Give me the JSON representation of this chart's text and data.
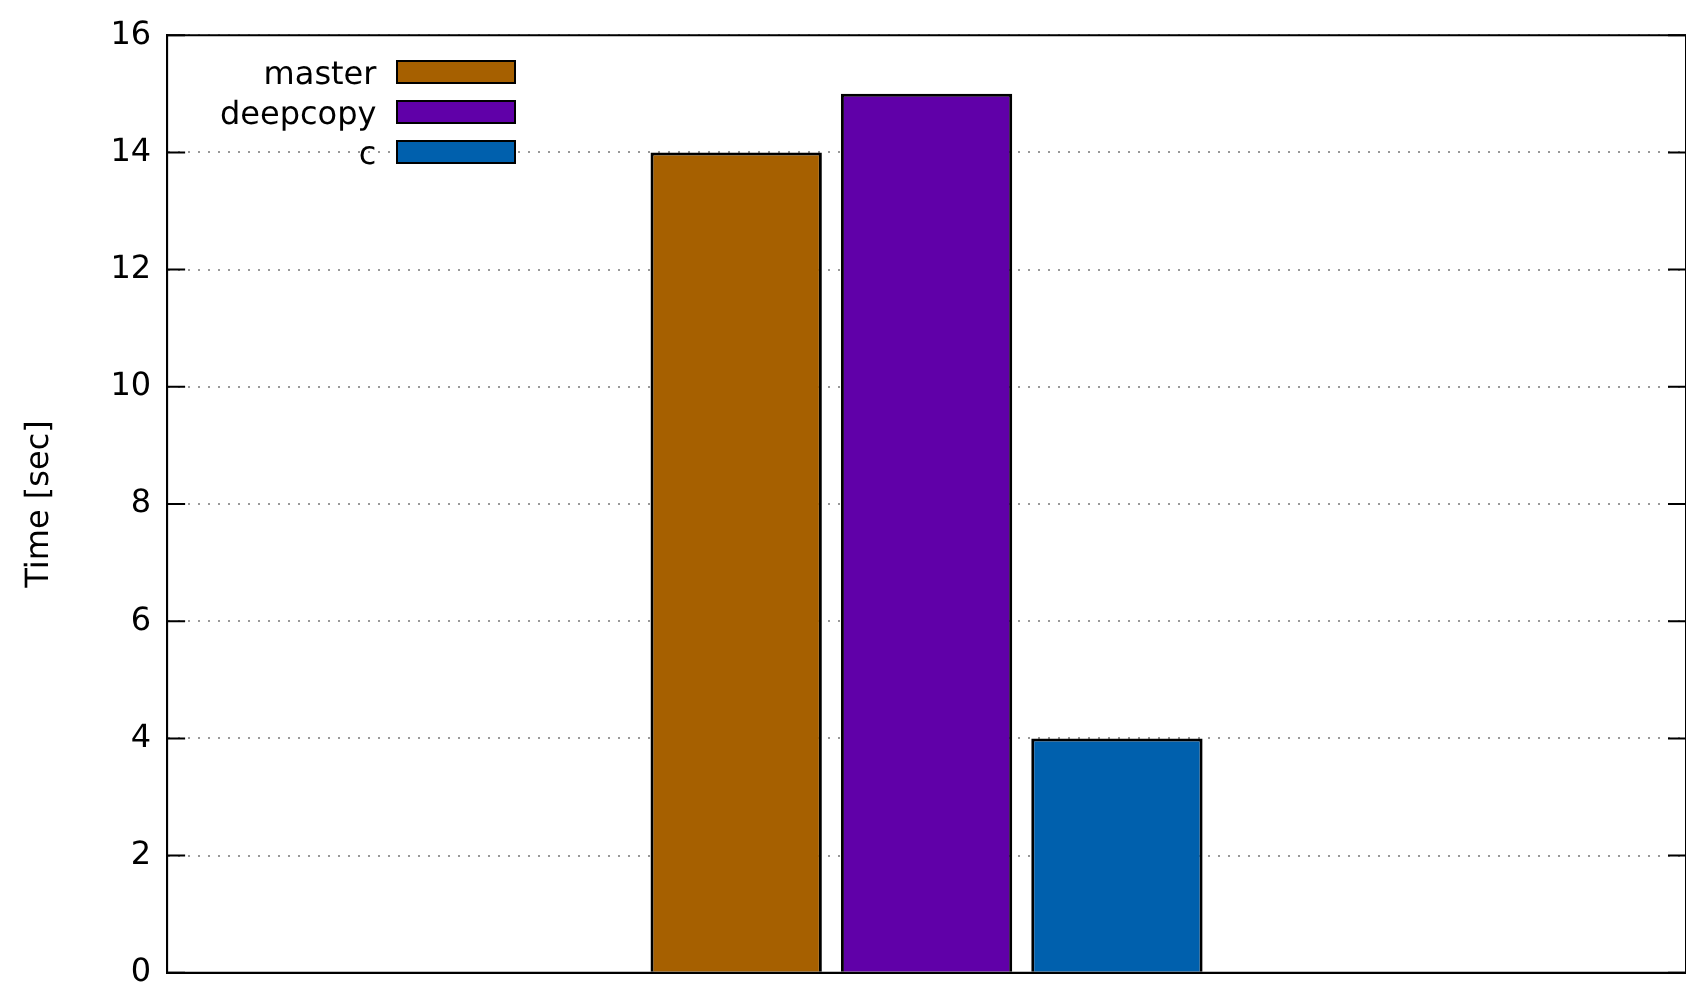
{
  "chart_data": {
    "type": "bar",
    "ylabel": "Time [sec]",
    "categories": [
      null
    ],
    "series": [
      {
        "name": "master",
        "color": "#a66000",
        "values": [
          14
        ]
      },
      {
        "name": "deepcopy",
        "color": "#6000a8",
        "values": [
          15
        ]
      },
      {
        "name": "c",
        "color": "#0060ad",
        "values": [
          4
        ]
      }
    ],
    "ylim": [
      0,
      16
    ],
    "yticks": [
      0,
      2,
      4,
      6,
      8,
      10,
      12,
      14,
      16
    ],
    "grid": "y",
    "legend": "top left",
    "tick_labels": "y"
  }
}
